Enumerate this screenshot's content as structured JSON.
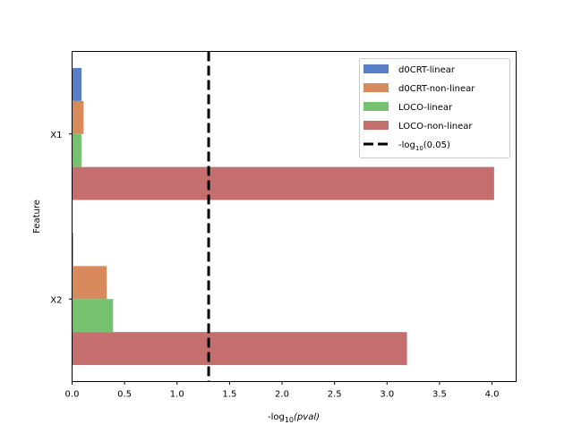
{
  "chart_data": {
    "type": "bar",
    "orientation": "horizontal",
    "categories": [
      "X1",
      "X2"
    ],
    "series": [
      {
        "name": "d0CRT-linear",
        "color": "#5a7dc7",
        "values": [
          0.09,
          0.01
        ]
      },
      {
        "name": "d0CRT-non-linear",
        "color": "#d98a5c",
        "values": [
          0.11,
          0.33
        ]
      },
      {
        "name": "LOCO-linear",
        "color": "#76c16f",
        "values": [
          0.09,
          0.39
        ]
      },
      {
        "name": "LOCO-non-linear",
        "color": "#c46e6d",
        "values": [
          4.02,
          3.19
        ]
      }
    ],
    "reference_line": {
      "value": 1.301,
      "label_prefix": "-log",
      "label_sub": "10",
      "label_suffix": "(0.05)",
      "style": "dashed",
      "color": "#000000"
    },
    "xlabel_prefix": "-log",
    "xlabel_sub": "10",
    "xlabel_suffix": "(pval)",
    "ylabel": "Feature",
    "xlim": [
      0,
      4.23
    ],
    "xticks": [
      "0.0",
      "0.5",
      "1.0",
      "1.5",
      "2.0",
      "2.5",
      "3.0",
      "3.5",
      "4.0"
    ],
    "grid": false,
    "legend_position": "top-right"
  }
}
